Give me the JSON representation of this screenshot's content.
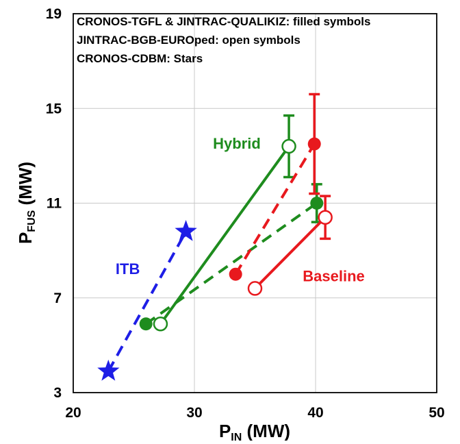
{
  "chart_data": {
    "type": "scatter",
    "xlabel": {
      "base": "P",
      "sub": "IN",
      "suffix": " (MW)"
    },
    "ylabel": {
      "base": "P",
      "sub": "FUS",
      "suffix": " (MW)"
    },
    "xlim": [
      20,
      50
    ],
    "ylim": [
      3,
      19
    ],
    "xticks": [
      20,
      30,
      40,
      50
    ],
    "yticks": [
      3,
      7,
      11,
      15,
      19
    ],
    "grid": true,
    "legend_notes": [
      "CRONOS-TGFL & JINTRAC-QUALIKIZ: filled symbols",
      "JINTRAC-BGB-EUROped: open symbols",
      "CRONOS-CDBM: Stars"
    ],
    "colors": {
      "hybrid": "#1e8c1e",
      "baseline": "#e8191e",
      "itb": "#1e1ee6"
    },
    "series": [
      {
        "name": "Hybrid",
        "model": "filled",
        "color": "#1e8c1e",
        "dash": true,
        "points": [
          {
            "x": 26.0,
            "y": 5.9
          },
          {
            "x": 40.1,
            "y": 11.0,
            "err": 0.8
          }
        ]
      },
      {
        "name": "Hybrid",
        "model": "open",
        "color": "#1e8c1e",
        "dash": false,
        "points": [
          {
            "x": 27.2,
            "y": 5.9
          },
          {
            "x": 37.8,
            "y": 13.4,
            "err": 1.3
          }
        ]
      },
      {
        "name": "Baseline",
        "model": "filled",
        "color": "#e8191e",
        "dash": true,
        "points": [
          {
            "x": 33.4,
            "y": 8.0
          },
          {
            "x": 39.9,
            "y": 13.5,
            "err": 2.1
          }
        ]
      },
      {
        "name": "Baseline",
        "model": "open",
        "color": "#e8191e",
        "dash": false,
        "points": [
          {
            "x": 35.0,
            "y": 7.4
          },
          {
            "x": 40.8,
            "y": 10.4,
            "err": 0.9
          }
        ]
      },
      {
        "name": "ITB",
        "model": "stars",
        "color": "#1e1ee6",
        "dash": true,
        "points": [
          {
            "x": 22.9,
            "y": 3.9
          },
          {
            "x": 29.3,
            "y": 9.8
          }
        ]
      }
    ],
    "labels": [
      {
        "text": "Hybrid",
        "color": "#1e8c1e",
        "x": 33.5,
        "y": 13.3
      },
      {
        "text": "Baseline",
        "color": "#e8191e",
        "x": 41.5,
        "y": 7.7
      },
      {
        "text": "ITB",
        "color": "#1e1ee6",
        "x": 24.5,
        "y": 8.0
      }
    ]
  }
}
